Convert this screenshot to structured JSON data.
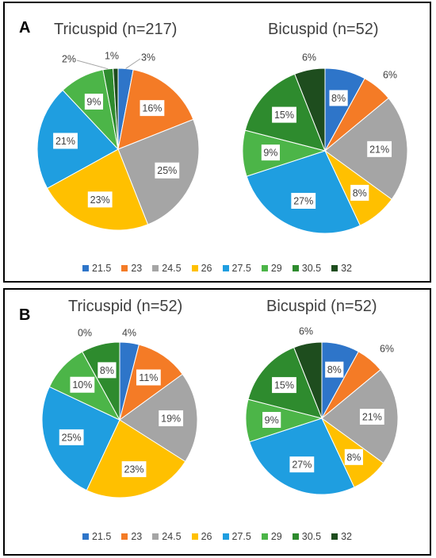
{
  "panels": [
    {
      "letter": "A",
      "charts": [
        {
          "title": "Tricuspid (n=217)",
          "labels": [
            "3%",
            "16%",
            "25%",
            "23%",
            "21%",
            "9%",
            "2%",
            "1%"
          ]
        },
        {
          "title": "Bicuspid (n=52)",
          "labels": [
            "8%",
            "6%",
            "21%",
            "8%",
            "27%",
            "9%",
            "15%",
            "6%"
          ]
        }
      ]
    },
    {
      "letter": "B",
      "charts": [
        {
          "title": "Tricuspid (n=52)",
          "labels": [
            "4%",
            "11%",
            "19%",
            "23%",
            "25%",
            "10%",
            "8%",
            "0%"
          ]
        },
        {
          "title": "Bicuspid (n=52)",
          "labels": [
            "8%",
            "6%",
            "21%",
            "8%",
            "27%",
            "9%",
            "15%",
            "6%"
          ]
        }
      ]
    }
  ],
  "legend": {
    "items": [
      "21.5",
      "23",
      "24.5",
      "26",
      "27.5",
      "29",
      "30.5",
      "32"
    ],
    "colors": [
      "#2e75c9",
      "#f47b26",
      "#a5a5a5",
      "#ffc000",
      "#1f9ee0",
      "#4cb548",
      "#2e8b2e",
      "#1e4d1e"
    ]
  },
  "chart_data": [
    {
      "type": "pie",
      "title": "Tricuspid (n=217)",
      "categories": [
        "21.5",
        "23",
        "24.5",
        "26",
        "27.5",
        "29",
        "30.5",
        "32"
      ],
      "values": [
        3,
        16,
        25,
        23,
        21,
        9,
        2,
        1
      ]
    },
    {
      "type": "pie",
      "title": "Bicuspid (n=52)",
      "categories": [
        "21.5",
        "23",
        "24.5",
        "26",
        "27.5",
        "29",
        "30.5",
        "32"
      ],
      "values": [
        8,
        6,
        21,
        8,
        27,
        9,
        15,
        6
      ]
    },
    {
      "type": "pie",
      "title": "Tricuspid (n=52)",
      "categories": [
        "21.5",
        "23",
        "24.5",
        "26",
        "27.5",
        "29",
        "30.5",
        "32"
      ],
      "values": [
        4,
        11,
        19,
        23,
        25,
        10,
        8,
        0
      ]
    },
    {
      "type": "pie",
      "title": "Bicuspid (n=52)",
      "categories": [
        "21.5",
        "23",
        "24.5",
        "26",
        "27.5",
        "29",
        "30.5",
        "32"
      ],
      "values": [
        8,
        6,
        21,
        8,
        27,
        9,
        15,
        6
      ]
    }
  ]
}
